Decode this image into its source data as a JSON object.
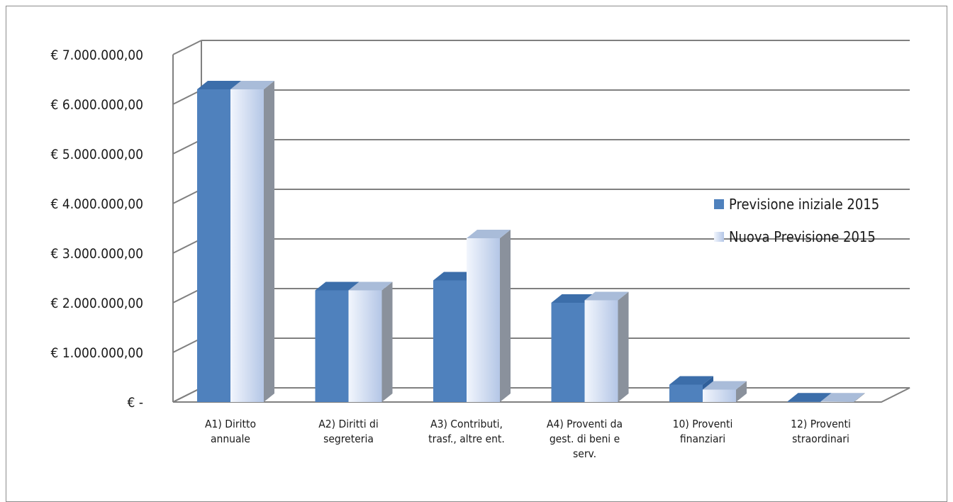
{
  "chart_data": {
    "type": "bar",
    "title": "",
    "xlabel": "",
    "ylabel": "",
    "ylim": [
      0,
      7000000
    ],
    "y_ticks": [
      "€ -",
      "€ 1.000.000,00",
      "€ 2.000.000,00",
      "€ 3.000.000,00",
      "€ 4.000.000,00",
      "€ 5.000.000,00",
      "€ 6.000.000,00",
      "€ 7.000.000,00"
    ],
    "grid": true,
    "three_d": true,
    "legend_position": "right",
    "categories": [
      [
        "A1) Diritto",
        "annuale"
      ],
      [
        "A2) Diritti di",
        "segreteria"
      ],
      [
        "A3) Contributi,",
        "trasf., altre ent."
      ],
      [
        "A4) Proventi da",
        "gest. di beni e",
        "serv."
      ],
      [
        "10) Proventi",
        "finanziari"
      ],
      [
        "12) Proventi",
        "straordinari"
      ]
    ],
    "series": [
      {
        "name": "Previsione iniziale 2015",
        "color": "#4f81bd",
        "values": [
          6300000,
          2250000,
          2450000,
          2000000,
          350000,
          10000
        ]
      },
      {
        "name": "Nuova Previsione 2015",
        "color": "#c6d5ef",
        "values": [
          6300000,
          2250000,
          3300000,
          2050000,
          250000,
          10000
        ]
      }
    ]
  }
}
